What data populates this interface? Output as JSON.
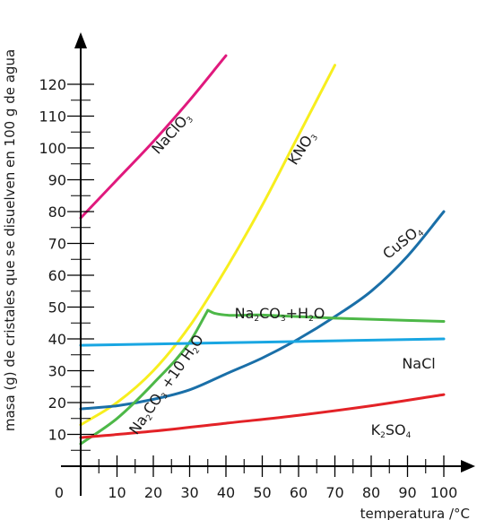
{
  "chart_data": {
    "type": "line",
    "xlabel": "temperatura /°C",
    "ylabel": "masa (g) de cristales que se disuelven en 100 g de agua",
    "xlim": [
      0,
      100
    ],
    "ylim": [
      0,
      120
    ],
    "x_ticks": [
      10,
      20,
      30,
      40,
      50,
      60,
      70,
      80,
      90,
      100
    ],
    "y_ticks": [
      10,
      20,
      30,
      40,
      50,
      60,
      70,
      80,
      90,
      100,
      110,
      120
    ],
    "origin_label": "0",
    "grid": false,
    "series": [
      {
        "name": "NaClO3",
        "label_parts": [
          [
            "NaClO",
            false
          ],
          [
            "3",
            true
          ]
        ],
        "color": "#e0197d",
        "x": [
          0,
          10,
          20,
          30,
          40
        ],
        "y": [
          78,
          90,
          102,
          115,
          129
        ]
      },
      {
        "name": "KNO3",
        "label_parts": [
          [
            "KNO",
            false
          ],
          [
            "3",
            true
          ]
        ],
        "color": "#f7ee1e",
        "x": [
          0,
          10,
          20,
          30,
          40,
          50,
          60,
          70
        ],
        "y": [
          13,
          20,
          30,
          44,
          62,
          82,
          104,
          126
        ]
      },
      {
        "name": "CuSO4",
        "label_parts": [
          [
            "CuSO",
            false
          ],
          [
            "4",
            true
          ]
        ],
        "color": "#1a6fa8",
        "x": [
          0,
          10,
          20,
          30,
          40,
          50,
          60,
          70,
          80,
          90,
          100
        ],
        "y": [
          18,
          19,
          21,
          24,
          29,
          34,
          40,
          47,
          55,
          66,
          80
        ]
      },
      {
        "name": "Na2CO3+10H2O",
        "label_parts": [
          [
            "Na",
            false
          ],
          [
            "2",
            true
          ],
          [
            "CO",
            false
          ],
          [
            "3",
            true
          ],
          [
            " +10 H",
            false
          ],
          [
            "2",
            true
          ],
          [
            "O",
            false
          ]
        ],
        "color": "#4db848",
        "x": [
          0,
          10,
          20,
          30,
          35
        ],
        "y": [
          7,
          15,
          26,
          39,
          49
        ]
      },
      {
        "name": "Na2CO3+H2O",
        "label_parts": [
          [
            "Na",
            false
          ],
          [
            "2",
            true
          ],
          [
            "CO",
            false
          ],
          [
            "3",
            true
          ],
          [
            "+H",
            false
          ],
          [
            "2",
            true
          ],
          [
            "O",
            false
          ]
        ],
        "color": "#4db848",
        "x": [
          35,
          37,
          50,
          70,
          100
        ],
        "y": [
          49,
          48,
          47.5,
          46.5,
          45.5
        ]
      },
      {
        "name": "NaCl",
        "label_parts": [
          [
            "NaCl",
            false
          ]
        ],
        "color": "#19a6e2",
        "x": [
          0,
          50,
          100
        ],
        "y": [
          38,
          39,
          40
        ]
      },
      {
        "name": "K2SO4",
        "label_parts": [
          [
            "K",
            false
          ],
          [
            "2",
            true
          ],
          [
            "SO",
            false
          ],
          [
            "4",
            true
          ]
        ],
        "color": "#e32227",
        "x": [
          0,
          20,
          40,
          60,
          80,
          100
        ],
        "y": [
          9,
          11,
          13.5,
          16,
          19,
          22.5
        ]
      }
    ]
  }
}
